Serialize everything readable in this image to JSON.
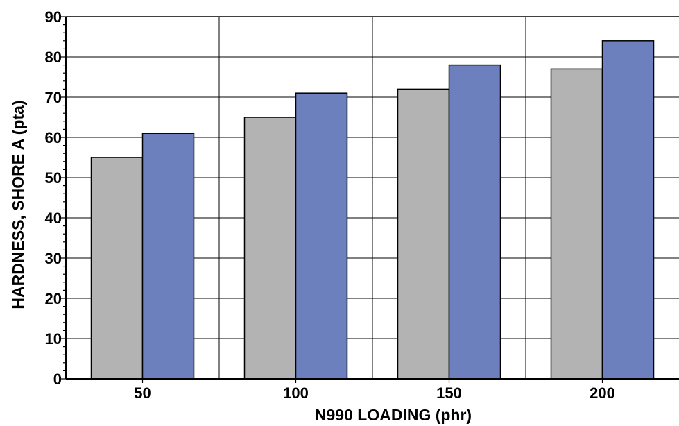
{
  "chart_data": {
    "type": "bar",
    "title": "",
    "xlabel": "N990 LOADING (phr)",
    "ylabel": "HARDNESS, SHORE A (pta)",
    "categories": [
      "50",
      "100",
      "150",
      "200"
    ],
    "series": [
      {
        "values": [
          55,
          65,
          72,
          77
        ],
        "color": "#b3b3b3"
      },
      {
        "values": [
          61,
          71,
          78,
          84
        ],
        "color": "#6b80bd"
      }
    ],
    "ylim": [
      0,
      90
    ],
    "y_ticks": [
      "0",
      "10",
      "20",
      "30",
      "40",
      "50",
      "60",
      "70",
      "80",
      "90"
    ],
    "y_minor_step": 2,
    "grid": true,
    "legend": "none"
  }
}
